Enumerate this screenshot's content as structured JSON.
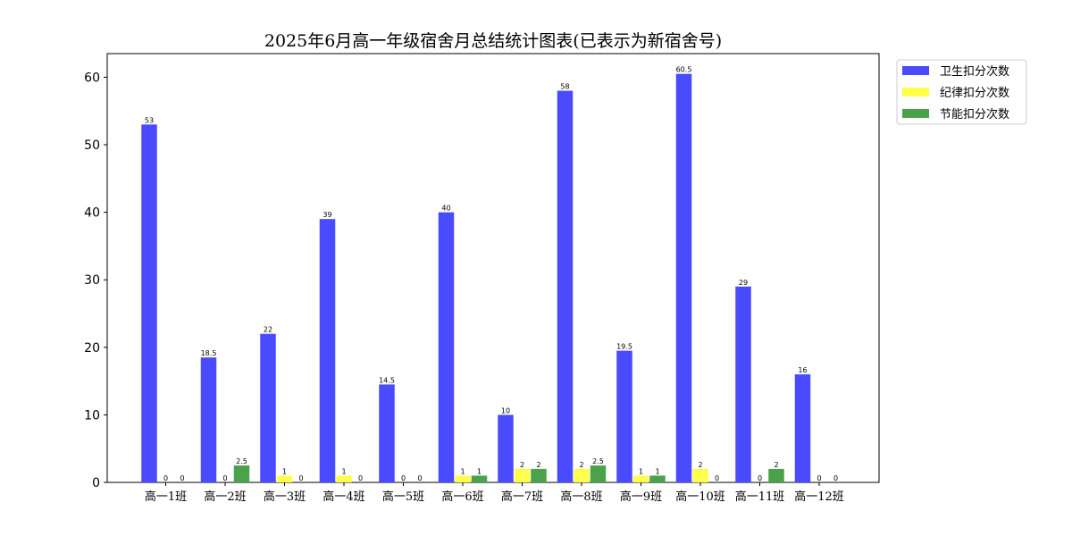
{
  "chart_data": {
    "type": "bar",
    "title": "2025年6月高一年级宿舍月总结统计图表(已表示为新宿舍号)",
    "xlabel": "",
    "ylabel": "",
    "ylim": [
      0,
      63.5
    ],
    "yticks": [
      0,
      10,
      20,
      30,
      40,
      50,
      60
    ],
    "grid": false,
    "legend_position": "outside-top-right",
    "categories": [
      "高一1班",
      "高一2班",
      "高一3班",
      "高一4班",
      "高一5班",
      "高一6班",
      "高一7班",
      "高一8班",
      "高一9班",
      "高一10班",
      "高一11班",
      "高一12班"
    ],
    "series": [
      {
        "name": "卫生扣分次数",
        "color": "#4a4aff",
        "values": [
          53,
          18.5,
          22,
          39,
          14.5,
          40,
          10,
          58,
          19.5,
          60.5,
          29,
          16
        ]
      },
      {
        "name": "纪律扣分次数",
        "color": "#ffff4a",
        "values": [
          0,
          0,
          1,
          1,
          0,
          1,
          2,
          2,
          1,
          2,
          0,
          0
        ]
      },
      {
        "name": "节能扣分次数",
        "color": "#4aa24a",
        "values": [
          0,
          2.5,
          0,
          0,
          0,
          1,
          2,
          2.5,
          1,
          0,
          2,
          0
        ]
      }
    ],
    "data_labels": [
      [
        "53",
        "18.5",
        "22",
        "39",
        "14.5",
        "40",
        "10",
        "58",
        "19.5",
        "60.5",
        "29",
        "16"
      ],
      [
        "0",
        "0",
        "1",
        "1",
        "0",
        "1",
        "2",
        "2",
        "1",
        "2",
        "0",
        "0"
      ],
      [
        "0",
        "2.5",
        "0",
        "0",
        "0",
        "1",
        "2",
        "2.5",
        "1",
        "0",
        "2",
        "0"
      ]
    ]
  }
}
